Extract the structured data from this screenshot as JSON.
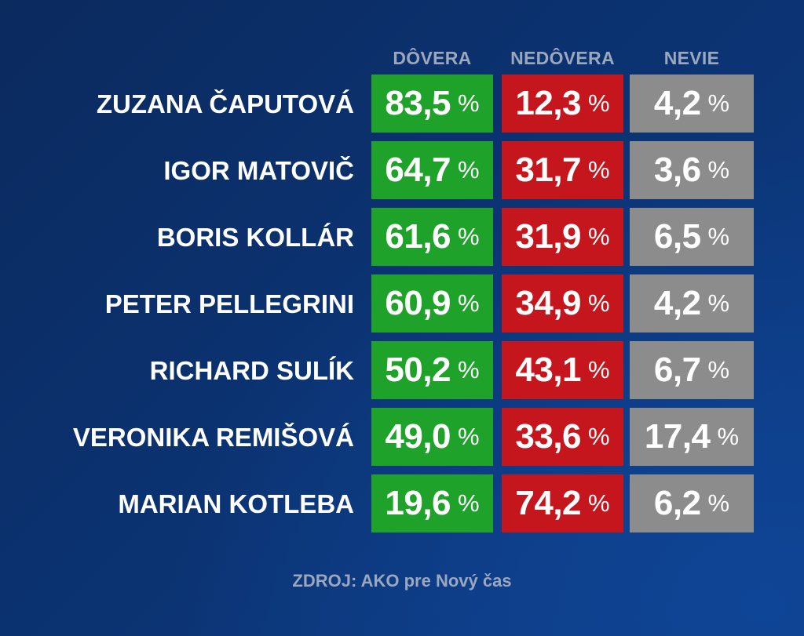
{
  "colors": {
    "dovera": "#1ea22a",
    "nedovera": "#c6161d",
    "nevie": "#8c8c8c",
    "header_text": "#9aa7bd"
  },
  "chart_data": {
    "type": "table",
    "columns": [
      "DÔVERA",
      "NEDÔVERA",
      "NEVIE"
    ],
    "unit": "%",
    "rows": [
      {
        "name": "ZUZANA ČAPUTOVÁ",
        "values": [
          "83,5",
          "12,3",
          "4,2"
        ]
      },
      {
        "name": "IGOR MATOVIČ",
        "values": [
          "64,7",
          "31,7",
          "3,6"
        ]
      },
      {
        "name": "BORIS KOLLÁR",
        "values": [
          "61,6",
          "31,9",
          "6,5"
        ]
      },
      {
        "name": "PETER PELLEGRINI",
        "values": [
          "60,9",
          "34,9",
          "4,2"
        ]
      },
      {
        "name": "RICHARD SULÍK",
        "values": [
          "50,2",
          "43,1",
          "6,7"
        ]
      },
      {
        "name": "VERONIKA REMIŠOVÁ",
        "values": [
          "49,0",
          "33,6",
          "17,4"
        ]
      },
      {
        "name": "MARIAN KOTLEBA",
        "values": [
          "19,6",
          "74,2",
          "6,2"
        ]
      }
    ],
    "source": "ZDROJ: AKO pre Nový čas"
  }
}
